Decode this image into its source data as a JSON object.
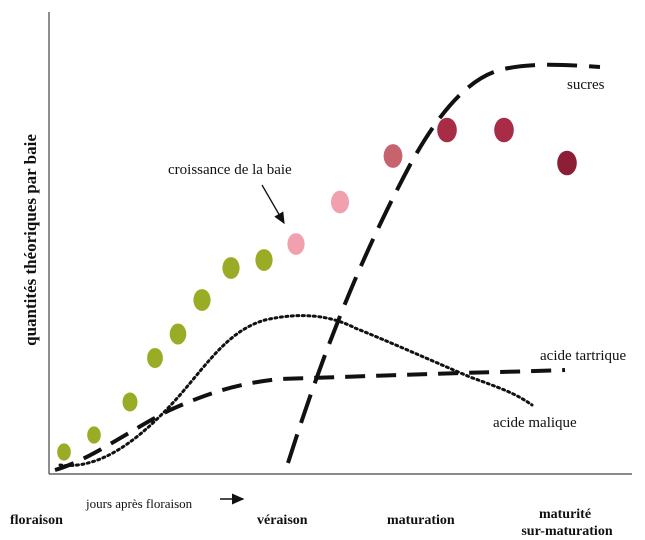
{
  "y_axis_label": "quantités théoriques par baie",
  "x_axis_note": "jours après floraison",
  "stages": [
    "floraison",
    "véraison",
    "maturation",
    "maturité",
    "sur-maturation"
  ],
  "curves": {
    "sucres": "sucres",
    "acide_tartrique": "acide tartrique",
    "acide_malique": "acide malique",
    "croissance": "croissance de la baie"
  },
  "berry_colors": {
    "green": "#9aab25",
    "pink_light": "#f0a1ad",
    "rose": "#c7626f",
    "crimson": "#a82c46",
    "dark": "#8c1f35"
  },
  "berries": [
    {
      "t": 0.03,
      "size": 0.9,
      "color": "green"
    },
    {
      "t": 0.08,
      "size": 0.9,
      "color": "green"
    },
    {
      "t": 0.14,
      "size": 1.0,
      "color": "green"
    },
    {
      "t": 0.18,
      "size": 1.05,
      "color": "green"
    },
    {
      "t": 0.22,
      "size": 1.1,
      "color": "green"
    },
    {
      "t": 0.27,
      "size": 1.15,
      "color": "green"
    },
    {
      "t": 0.33,
      "size": 1.15,
      "color": "green"
    },
    {
      "t": 0.38,
      "size": 1.15,
      "color": "green"
    },
    {
      "t": 0.43,
      "size": 1.15,
      "color": "pink_light"
    },
    {
      "t": 0.51,
      "size": 1.2,
      "color": "pink_light"
    },
    {
      "t": 0.61,
      "size": 1.25,
      "color": "rose"
    },
    {
      "t": 0.69,
      "size": 1.3,
      "color": "crimson"
    },
    {
      "t": 0.79,
      "size": 1.3,
      "color": "crimson"
    },
    {
      "t": 0.89,
      "size": 1.3,
      "color": "dark"
    }
  ]
}
